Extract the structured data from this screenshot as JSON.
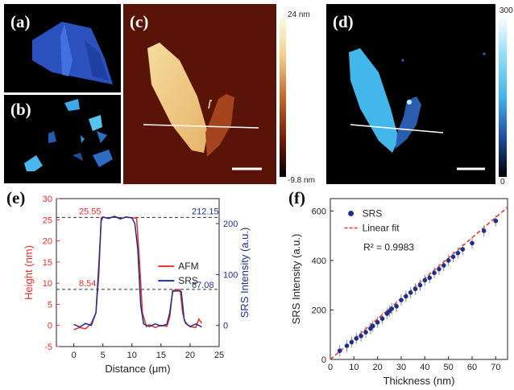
{
  "panels": {
    "a": {
      "label": "(a)"
    },
    "b": {
      "label": "(b)"
    },
    "c": {
      "label": "(c)",
      "colorbar_max": "24 nm",
      "colorbar_min": "-9.8 nm"
    },
    "d": {
      "label": "(d)",
      "colorbar_max": "300",
      "colorbar_min": "0"
    },
    "e": {
      "label": "(e)"
    },
    "f": {
      "label": "(f)"
    }
  },
  "colors": {
    "afm": "#e8302a",
    "srs": "#1f2f8c",
    "fit": "#e8302a",
    "afm_map_light": "#f2d49a",
    "srs_map": "#43b6ea"
  },
  "chart_data": [
    {
      "type": "line",
      "panel": "e",
      "xlabel": "Distance (μm)",
      "ylabel": "Height (nm)",
      "y2label": "SRS Intensity (a.u.)",
      "xlim": [
        -3,
        25
      ],
      "ylim": [
        -5,
        30
      ],
      "y2lim": [
        -41.5,
        249
      ],
      "xticks": [
        0,
        5,
        10,
        15,
        20,
        25
      ],
      "yticks": [
        -5,
        0,
        5,
        10,
        15,
        20,
        25,
        30
      ],
      "y2ticks": [
        0,
        100,
        200
      ],
      "legend_position": "right",
      "series": [
        {
          "name": "AFM",
          "axis": "left",
          "x": [
            0,
            1,
            2,
            3,
            3.8,
            4.3,
            4.7,
            5,
            6,
            7,
            8,
            9,
            10,
            10.8,
            11.3,
            11.8,
            12.5,
            13,
            14,
            15,
            16,
            16.5,
            17,
            18,
            18.3,
            18.7,
            19.2,
            20,
            21,
            21.5,
            22
          ],
          "y": [
            -1,
            -0.5,
            -0.8,
            0.5,
            3,
            12,
            25.5,
            25.6,
            25.4,
            25.8,
            25.3,
            25.6,
            25.5,
            25.4,
            15,
            3,
            -0.3,
            0.2,
            -0.5,
            0,
            -0.2,
            2,
            8.3,
            8.5,
            8.4,
            3,
            0.5,
            -0.3,
            -0.5,
            1.5,
            0.5
          ]
        },
        {
          "name": "SRS",
          "axis": "right",
          "x": [
            0,
            1,
            2,
            3,
            3.8,
            4.3,
            4.7,
            5,
            6,
            7,
            8,
            9,
            10,
            10.5,
            11,
            11.5,
            12,
            13,
            14,
            15,
            16,
            16.5,
            17,
            18,
            18.5,
            19,
            19.5,
            20,
            21,
            21.5,
            22
          ],
          "y": [
            2,
            -3,
            4,
            0,
            25,
            120,
            205,
            213,
            210,
            214,
            209,
            213,
            211,
            200,
            150,
            40,
            3,
            -2,
            3,
            -1,
            2,
            25,
            67,
            68,
            66,
            10,
            2,
            -2,
            3,
            0,
            -3
          ]
        }
      ],
      "annotations": [
        {
          "text": "25.55",
          "value": 25.55,
          "axis": "left"
        },
        {
          "text": "8.54",
          "value": 8.54,
          "axis": "left"
        },
        {
          "text": "212.15",
          "value": 212.15,
          "axis": "right"
        },
        {
          "text": "67.08",
          "value": 67.08,
          "axis": "right"
        }
      ]
    },
    {
      "type": "scatter",
      "panel": "f",
      "xlabel": "Thickness (nm)",
      "ylabel": "SRS Intensity (a.u.)",
      "xlim": [
        0,
        75
      ],
      "ylim": [
        0,
        650
      ],
      "xticks": [
        0,
        10,
        20,
        30,
        40,
        50,
        60,
        70
      ],
      "yticks": [
        0,
        200,
        400,
        600
      ],
      "legend_position": "top-left",
      "annotation": "R² = 0.9983",
      "series": [
        {
          "name": "SRS",
          "x": [
            4,
            7,
            9,
            11,
            13,
            15,
            17,
            18,
            20,
            22,
            24,
            25,
            26,
            28,
            30,
            32,
            34,
            36,
            38,
            40,
            42,
            44,
            46,
            48,
            50,
            52,
            54,
            56,
            60,
            65,
            70
          ],
          "y": [
            35,
            55,
            70,
            85,
            95,
            110,
            125,
            135,
            150,
            165,
            185,
            195,
            205,
            215,
            240,
            255,
            270,
            285,
            300,
            320,
            330,
            350,
            365,
            380,
            400,
            415,
            430,
            445,
            470,
            520,
            560
          ]
        },
        {
          "name": "Linear fit",
          "x": [
            0,
            75
          ],
          "y": [
            0,
            615
          ]
        }
      ]
    }
  ]
}
